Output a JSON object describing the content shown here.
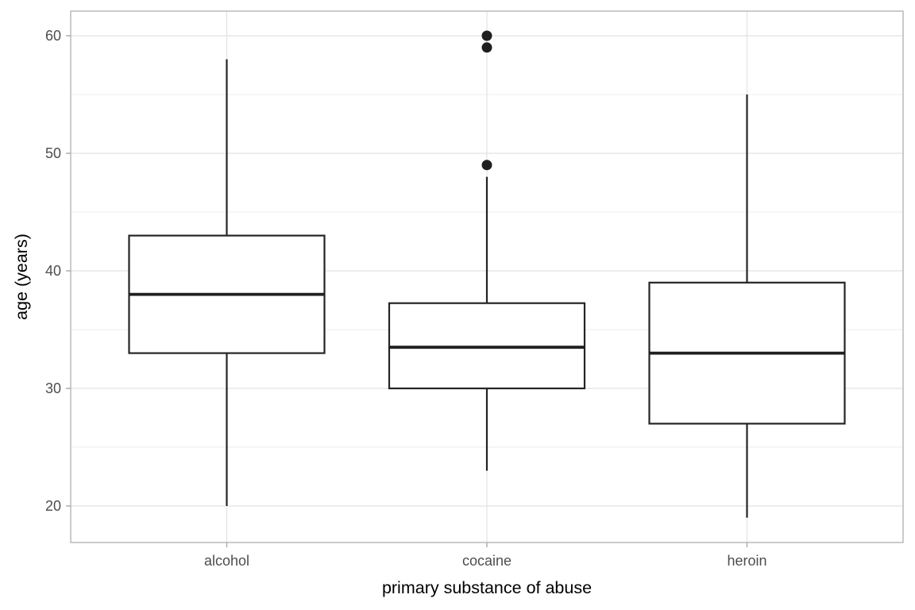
{
  "chart_data": {
    "type": "boxplot",
    "title": "",
    "xlabel": "primary substance of abuse",
    "ylabel": "age (years)",
    "categories": [
      "alcohol",
      "cocaine",
      "heroin"
    ],
    "series": [
      {
        "category": "alcohol",
        "whisker_low": 20,
        "q1": 33,
        "median": 38,
        "q3": 43,
        "whisker_high": 58,
        "outliers": []
      },
      {
        "category": "cocaine",
        "whisker_low": 23,
        "q1": 30,
        "median": 33.5,
        "q3": 37.25,
        "whisker_high": 48,
        "outliers": [
          49,
          59,
          60
        ]
      },
      {
        "category": "heroin",
        "whisker_low": 19,
        "q1": 27,
        "median": 33,
        "q3": 39,
        "whisker_high": 55,
        "outliers": []
      }
    ],
    "y_ticks": [
      20,
      30,
      40,
      50,
      60
    ],
    "y_minor_ticks": [
      25,
      35,
      45,
      55
    ],
    "ylim": [
      16.9,
      62.2
    ],
    "grid": "major+minor",
    "legend": "none"
  },
  "colors": {
    "background": "#ffffff",
    "panel_background": "#ffffff",
    "panel_border": "#b5b5b5",
    "grid_major": "#e2e2e2",
    "grid_minor": "#f0f0f0",
    "box_stroke": "#242424",
    "box_fill": "#ffffff",
    "median_stroke": "#1f1f1f",
    "outlier_fill": "#1f1f1f",
    "tick_mark": "#a8a8a8",
    "tick_label": "#4d4d4d",
    "axis_title": "#000000"
  }
}
